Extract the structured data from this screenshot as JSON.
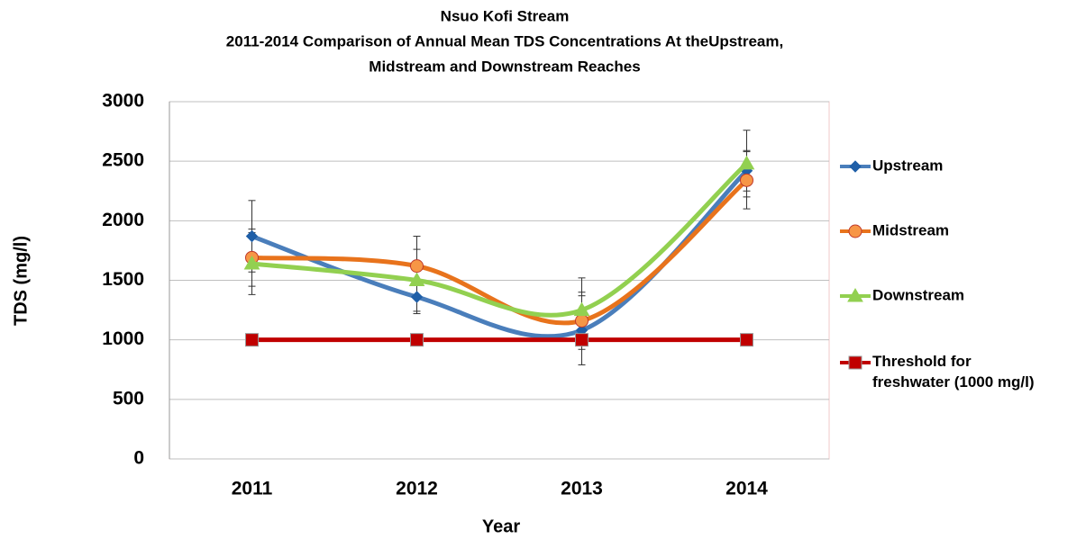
{
  "chart_data": {
    "type": "line",
    "title": [
      "Nsuo Kofi Stream",
      "2011-2014 Comparison of Annual Mean TDS Concentrations At theUpstream,",
      "Midstream and Downstream  Reaches"
    ],
    "x_label": "Year",
    "y_label": "TDS (mg/l)",
    "categories": [
      "2011",
      "2012",
      "2013",
      "2014"
    ],
    "series": [
      {
        "name": "Upstream",
        "color": "#4a7ebb",
        "marker": "diamond",
        "marker_color": "#1f5fa8",
        "values": [
          1870,
          1360,
          1080,
          2420
        ],
        "errors": [
          300,
          140,
          290,
          170
        ]
      },
      {
        "name": "Midstream",
        "color": "#e8731c",
        "marker": "circle",
        "marker_color": "#f79646",
        "values": [
          1690,
          1620,
          1160,
          2340
        ],
        "errors": [
          240,
          250,
          240,
          240
        ]
      },
      {
        "name": "Downstream",
        "color": "#92d050",
        "marker": "triangle",
        "marker_color": "#92d050",
        "values": [
          1640,
          1500,
          1250,
          2480
        ],
        "errors": [
          260,
          260,
          270,
          280
        ]
      },
      {
        "name": "Threshold for freshwater (1000 mg/l)",
        "color": "#c00000",
        "marker": "square",
        "marker_color": "#c00000",
        "values": [
          1000,
          1000,
          1000,
          1000
        ]
      }
    ],
    "ylim": [
      0,
      3000
    ],
    "yticks": [
      0,
      500,
      1000,
      1500,
      2000,
      2500,
      3000
    ],
    "grid": true,
    "smooth": true,
    "legend": "right"
  }
}
